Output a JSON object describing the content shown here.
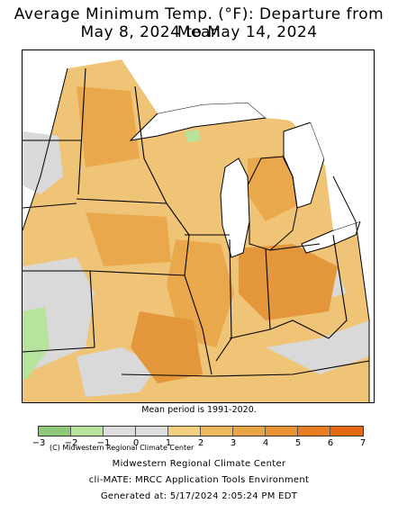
{
  "title_line1": "Average Minimum Temp. (°F): Departure from Mean",
  "title_line2": "May 8, 2024 to May 14, 2024",
  "credit": "(C) Midwestern Regional Climate Center",
  "mean_period": "Mean period is 1991-2020.",
  "legend": {
    "ticks": [
      "−3",
      "−2",
      "−1",
      "0",
      "1",
      "2",
      "3",
      "4",
      "5",
      "6",
      "7"
    ],
    "colors": [
      "#8ec97a",
      "#b8e39c",
      "#dddddd",
      "#dddddd",
      "#f2cf7e",
      "#eeb95c",
      "#e9a545",
      "#e89234",
      "#e97d22",
      "#e36a12"
    ]
  },
  "footer": {
    "line1": "Midwestern Regional Climate Center",
    "line2": "cli-MATE: MRCC Application Tools Environment",
    "line3": "Generated at: 5/17/2024 2:05:24 PM EDT"
  },
  "map_colors": {
    "water": "#ffffff",
    "neutral": "#d9d9d9",
    "slight_warm": "#efc477",
    "warm": "#e9a84c",
    "warmer": "#e4963a",
    "cool": "#b8e39c"
  }
}
